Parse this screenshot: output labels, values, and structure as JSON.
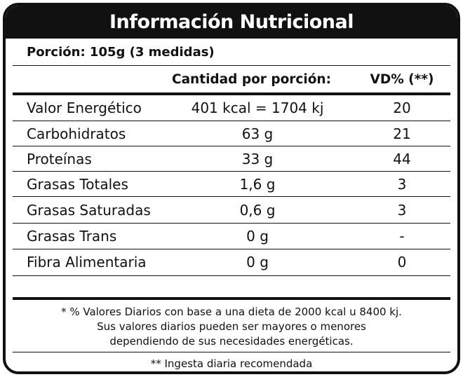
{
  "label": {
    "title": "Información Nutricional",
    "serving": "Porción: 105g (3 medidas)",
    "headers": {
      "amount": "Cantidad por porción:",
      "dv": "VD% (**)"
    },
    "rows": [
      {
        "name": "Valor Energético",
        "amount": "401 kcal = 1704 kj",
        "dv": "20"
      },
      {
        "name": "Carbohidratos",
        "amount": "63 g",
        "dv": "21"
      },
      {
        "name": "Proteínas",
        "amount": "33 g",
        "dv": "44"
      },
      {
        "name": "Grasas Totales",
        "amount": "1,6 g",
        "dv": "3"
      },
      {
        "name": "Grasas Saturadas",
        "amount": "0,6 g",
        "dv": "3"
      },
      {
        "name": "Grasas Trans",
        "amount": "0 g",
        "dv": "-"
      },
      {
        "name": "Fibra Alimentaria",
        "amount": "0 g",
        "dv": "0"
      }
    ],
    "footnote_lines": [
      "* % Valores Diarios con base a una dieta de 2000 kcal u 8400 kj.",
      "Sus valores diarios pueden ser mayores o menores",
      "dependiendo de sus necesidades energéticas."
    ],
    "footnote2": "** Ingesta diaria recomendada"
  }
}
